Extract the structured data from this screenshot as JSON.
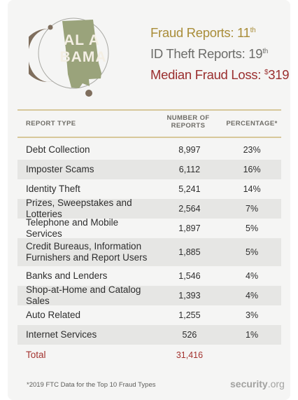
{
  "logo": {
    "state_abbrev_top": "AL A",
    "state_abbrev_bottom": "BAMA",
    "state_shape_color": "#9aa37b",
    "moon_color": "#7f6e5d"
  },
  "stats": {
    "fraud_label": "Fraud Reports: 11",
    "fraud_suffix": "th",
    "id_label": "ID Theft Reports: 19",
    "id_suffix": "th",
    "loss_label": "Median Fraud Loss: ",
    "loss_prefix": "$",
    "loss_value": "319",
    "colors": {
      "fraud": "#a98d39",
      "id": "#6d6d6a",
      "loss": "#9a2e2e"
    }
  },
  "table": {
    "headers": {
      "type": "REPORT TYPE",
      "number_line1": "NUMBER OF",
      "number_line2": "REPORTS",
      "percentage": "PERCENTAGE*"
    },
    "total_label": "Total",
    "total_value": "31,416"
  },
  "chart_data": {
    "type": "table",
    "columns": [
      "REPORT TYPE",
      "NUMBER OF REPORTS",
      "PERCENTAGE*"
    ],
    "rows": [
      {
        "type": "Debt Collection",
        "reports": "8,997",
        "percentage": "23%"
      },
      {
        "type": "Imposter Scams",
        "reports": "6,112",
        "percentage": "16%"
      },
      {
        "type": "Identity Theft",
        "reports": "5,241",
        "percentage": "14%"
      },
      {
        "type": "Prizes, Sweepstakes and Lotteries",
        "reports": "2,564",
        "percentage": "7%"
      },
      {
        "type": "Telephone and Mobile Services",
        "reports": "1,897",
        "percentage": "5%"
      },
      {
        "type": "Credit Bureaus, Information Furnishers and Report Users",
        "type_line1": "Credit Bureaus, Information",
        "type_line2": "Furnishers and Report Users",
        "reports": "1,885",
        "percentage": "5%"
      },
      {
        "type": "Banks and Lenders",
        "reports": "1,546",
        "percentage": "4%"
      },
      {
        "type": "Shop-at-Home and Catalog Sales",
        "reports": "1,393",
        "percentage": "4%"
      },
      {
        "type": "Auto Related",
        "reports": "1,255",
        "percentage": "3%"
      },
      {
        "type": "Internet Services",
        "reports": "526",
        "percentage": "1%"
      }
    ]
  },
  "footer": {
    "note": "*2019 FTC Data for the Top 10 Fraud Types",
    "brand_main": "security",
    "brand_tld": ".org"
  }
}
